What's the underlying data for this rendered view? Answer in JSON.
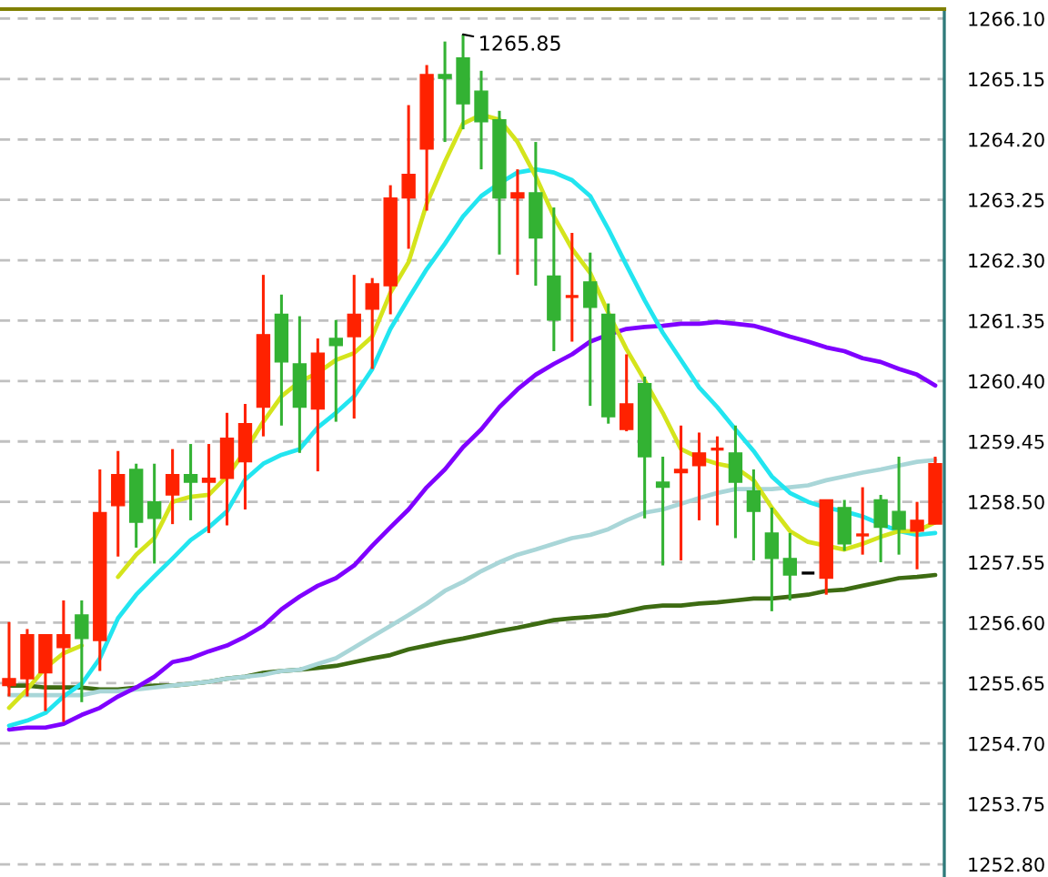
{
  "chart_data": {
    "type": "candlestick",
    "categories": [
      null,
      null,
      null,
      null,
      null,
      null,
      null,
      null,
      null,
      null,
      null,
      null,
      null,
      null,
      null,
      null,
      null,
      null,
      null,
      null,
      null,
      null,
      null,
      null,
      null,
      null,
      null,
      null,
      null,
      null,
      null,
      null,
      null,
      null,
      null,
      null,
      null,
      null,
      null,
      null,
      null,
      null,
      null,
      null,
      null,
      null,
      null,
      null,
      null,
      null,
      null,
      null
    ],
    "ohlc": [
      [
        1255.61,
        1256.61,
        1255.44,
        1255.72
      ],
      [
        1255.72,
        1256.5,
        1255.44,
        1256.41
      ],
      [
        1255.81,
        1256.41,
        1255.21,
        1256.41
      ],
      [
        1256.21,
        1256.95,
        1255.04,
        1256.41
      ],
      [
        1256.72,
        1256.95,
        1255.35,
        1256.35
      ],
      [
        1256.32,
        1259.01,
        1255.84,
        1258.33
      ],
      [
        1258.44,
        1259.3,
        1257.64,
        1258.93
      ],
      [
        1259.01,
        1259.1,
        1257.78,
        1258.18
      ],
      [
        1258.5,
        1259.1,
        1257.53,
        1258.24
      ],
      [
        1258.61,
        1259.33,
        1258.15,
        1258.93
      ],
      [
        1258.93,
        1259.41,
        1258.21,
        1258.81
      ],
      [
        1258.81,
        1259.41,
        1258.01,
        1258.87
      ],
      [
        1258.87,
        1259.9,
        1258.13,
        1259.5
      ],
      [
        1259.13,
        1260.04,
        1258.38,
        1259.73
      ],
      [
        1259.99,
        1262.07,
        1259.53,
        1261.13
      ],
      [
        1261.45,
        1261.76,
        1259.7,
        1260.7
      ],
      [
        1260.67,
        1261.42,
        1259.27,
        1259.99
      ],
      [
        1259.96,
        1261.07,
        1258.98,
        1260.84
      ],
      [
        1261.07,
        1261.36,
        1259.76,
        1260.96
      ],
      [
        1261.1,
        1262.07,
        1259.81,
        1261.45
      ],
      [
        1261.53,
        1262.02,
        1260.59,
        1261.93
      ],
      [
        1261.9,
        1263.48,
        1261.45,
        1263.28
      ],
      [
        1263.28,
        1264.74,
        1262.48,
        1263.65
      ],
      [
        1264.05,
        1265.37,
        1263.08,
        1265.22
      ],
      [
        1265.22,
        1265.74,
        1264.16,
        1265.16
      ],
      [
        1265.48,
        1265.85,
        1264.36,
        1264.76
      ],
      [
        1264.96,
        1265.28,
        1263.73,
        1264.48
      ],
      [
        1264.51,
        1264.65,
        1262.39,
        1263.28
      ],
      [
        1263.28,
        1263.73,
        1262.07,
        1263.36
      ],
      [
        1263.36,
        1264.16,
        1261.9,
        1262.65
      ],
      [
        1262.05,
        1263.13,
        1260.87,
        1261.36
      ],
      [
        1261.73,
        1262.73,
        1261.02,
        1261.73
      ],
      [
        1261.96,
        1262.42,
        1260.01,
        1261.56
      ],
      [
        1261.45,
        1261.62,
        1259.73,
        1259.84
      ],
      [
        1259.64,
        1260.82,
        1259.61,
        1260.04
      ],
      [
        1260.36,
        1260.47,
        1258.24,
        1259.21
      ],
      [
        1258.81,
        1259.21,
        1257.5,
        1258.73
      ],
      [
        1258.96,
        1259.7,
        1257.58,
        1259.01
      ],
      [
        1259.07,
        1259.59,
        1258.21,
        1259.27
      ],
      [
        1259.33,
        1259.53,
        1258.13,
        1259.33
      ],
      [
        1259.27,
        1259.7,
        1257.93,
        1258.81
      ],
      [
        1258.67,
        1259.01,
        1257.58,
        1258.35
      ],
      [
        1258.01,
        1258.41,
        1256.78,
        1257.61
      ],
      [
        1257.61,
        1258.01,
        1256.95,
        1257.35
      ],
      [
        1257.38,
        1257.38,
        1257.38,
        1257.38
      ],
      [
        1257.3,
        1258.53,
        1257.04,
        1258.53
      ],
      [
        1258.41,
        1258.53,
        1257.73,
        1257.84
      ],
      [
        1257.98,
        1258.73,
        1257.67,
        1257.98
      ],
      [
        1258.53,
        1258.61,
        1257.55,
        1258.1
      ],
      [
        1258.35,
        1259.21,
        1257.67,
        1258.07
      ],
      [
        1258.04,
        1258.5,
        1257.44,
        1258.21
      ],
      [
        1258.15,
        1259.21,
        1258.15,
        1259.1
      ]
    ],
    "colors": [
      "#ff2200",
      "#ff2200",
      "#ff2200",
      "#ff2200",
      "#33b233",
      "#ff2200",
      "#ff2200",
      "#33b233",
      "#33b233",
      "#ff2200",
      "#33b233",
      "#ff2200",
      "#ff2200",
      "#ff2200",
      "#ff2200",
      "#33b233",
      "#33b233",
      "#ff2200",
      "#33b233",
      "#ff2200",
      "#ff2200",
      "#ff2200",
      "#ff2200",
      "#ff2200",
      "#33b233",
      "#33b233",
      "#33b233",
      "#33b233",
      "#ff2200",
      "#33b233",
      "#33b233",
      "#ff2200",
      "#33b233",
      "#33b233",
      "#ff2200",
      "#33b233",
      "#33b233",
      "#ff2200",
      "#ff2200",
      "#ff2200",
      "#33b233",
      "#33b233",
      "#33b233",
      "#33b233",
      "#000000",
      "#ff2200",
      "#33b233",
      "#ff2200",
      "#33b233",
      "#33b233",
      "#ff2200",
      "#ff2200"
    ],
    "series": [
      {
        "type": "line",
        "color": "#3d6b12",
        "values": [
          1255.61,
          1255.61,
          1255.58,
          1255.58,
          1255.58,
          1255.55,
          1255.55,
          1255.58,
          1255.61,
          1255.61,
          1255.64,
          1255.67,
          1255.72,
          1255.75,
          1255.81,
          1255.84,
          1255.86,
          1255.89,
          1255.92,
          1255.98,
          1256.04,
          1256.09,
          1256.18,
          1256.24,
          1256.3,
          1256.35,
          1256.41,
          1256.47,
          1256.52,
          1256.58,
          1256.64,
          1256.67,
          1256.69,
          1256.72,
          1256.78,
          1256.84,
          1256.87,
          1256.87,
          1256.9,
          1256.92,
          1256.95,
          1256.98,
          1256.98,
          1257.01,
          1257.04,
          1257.1,
          1257.12,
          1257.18,
          1257.24,
          1257.3,
          1257.32,
          1257.35
        ]
      },
      {
        "type": "line",
        "color": "#a9d6d8",
        "values": [
          1255.46,
          1255.46,
          1255.46,
          1255.46,
          1255.46,
          1255.52,
          1255.52,
          1255.55,
          1255.58,
          1255.61,
          1255.64,
          1255.67,
          1255.72,
          1255.75,
          1255.78,
          1255.84,
          1255.86,
          1255.95,
          1256.04,
          1256.21,
          1256.38,
          1256.55,
          1256.72,
          1256.9,
          1257.1,
          1257.24,
          1257.41,
          1257.55,
          1257.67,
          1257.75,
          1257.84,
          1257.93,
          1257.98,
          1258.07,
          1258.21,
          1258.33,
          1258.38,
          1258.47,
          1258.56,
          1258.64,
          1258.7,
          1258.7,
          1258.7,
          1258.73,
          1258.76,
          1258.84,
          1258.9,
          1258.96,
          1259.01,
          1259.07,
          1259.13,
          1259.16
        ]
      },
      {
        "type": "line",
        "color": "#7f00ff",
        "values": [
          1254.92,
          1254.95,
          1254.95,
          1255.01,
          1255.15,
          1255.26,
          1255.44,
          1255.58,
          1255.75,
          1255.98,
          1256.04,
          1256.15,
          1256.24,
          1256.38,
          1256.55,
          1256.81,
          1257.01,
          1257.18,
          1257.3,
          1257.5,
          1257.81,
          1258.1,
          1258.38,
          1258.73,
          1259.01,
          1259.36,
          1259.64,
          1259.99,
          1260.27,
          1260.5,
          1260.67,
          1260.82,
          1261.02,
          1261.13,
          1261.22,
          1261.25,
          1261.27,
          1261.3,
          1261.3,
          1261.33,
          1261.3,
          1261.27,
          1261.19,
          1261.1,
          1261.02,
          1260.93,
          1260.87,
          1260.76,
          1260.7,
          1260.59,
          1260.5,
          1260.33
        ]
      },
      {
        "type": "line",
        "color": "#22e5f0",
        "values": [
          1254.98,
          1255.06,
          1255.18,
          1255.44,
          1255.64,
          1256.04,
          1256.67,
          1257.04,
          1257.33,
          1257.61,
          1257.9,
          1258.1,
          1258.35,
          1258.85,
          1259.1,
          1259.24,
          1259.33,
          1259.67,
          1259.9,
          1260.16,
          1260.59,
          1261.22,
          1261.7,
          1262.16,
          1262.56,
          1262.99,
          1263.31,
          1263.51,
          1263.68,
          1263.73,
          1263.68,
          1263.56,
          1263.31,
          1262.79,
          1262.22,
          1261.67,
          1261.16,
          1260.73,
          1260.3,
          1259.99,
          1259.64,
          1259.3,
          1258.9,
          1258.64,
          1258.5,
          1258.41,
          1258.35,
          1258.27,
          1258.15,
          1258.04,
          1257.98,
          1258.01
        ]
      },
      {
        "type": "line",
        "color": "#d4e41c",
        "values": [
          1255.26,
          1255.55,
          1255.89,
          1256.12,
          1256.24,
          null,
          1257.32,
          1257.67,
          1257.93,
          1258.5,
          1258.58,
          1258.61,
          1258.9,
          1259.3,
          1259.76,
          1260.16,
          1260.39,
          1260.53,
          1260.73,
          1260.84,
          1261.1,
          1261.79,
          1262.27,
          1263.19,
          1263.85,
          1264.45,
          1264.59,
          1264.51,
          1264.16,
          1263.62,
          1262.99,
          1262.48,
          1262.1,
          1261.47,
          1260.9,
          1260.41,
          1259.9,
          1259.33,
          1259.19,
          1259.1,
          1259.04,
          1258.84,
          1258.41,
          1258.04,
          1257.87,
          1257.81,
          1257.75,
          1257.84,
          1257.95,
          1258.04,
          1258.04,
          1258.18
        ]
      }
    ],
    "ylim": [
      1252.6,
      1266.25
    ],
    "yticks": [
      {
        "value": 1266.1,
        "label": "1266.10"
      },
      1265.15,
      {
        "value": 1264.2,
        "label": "1264.20"
      },
      1263.25,
      {
        "value": 1262.3,
        "label": "1262.30"
      },
      1261.35,
      {
        "value": 1260.4,
        "label": "1260.40"
      },
      1259.45,
      {
        "value": 1258.5,
        "label": "1258.50"
      },
      1257.55,
      {
        "value": 1256.6,
        "label": "1256.60"
      },
      1255.65,
      {
        "value": 1254.7,
        "label": "1254.70"
      },
      1253.75,
      {
        "value": 1252.8,
        "label": "1252.80"
      }
    ],
    "grid": "y",
    "tick_labels": "y",
    "annotations": [
      "1265.85"
    ]
  }
}
